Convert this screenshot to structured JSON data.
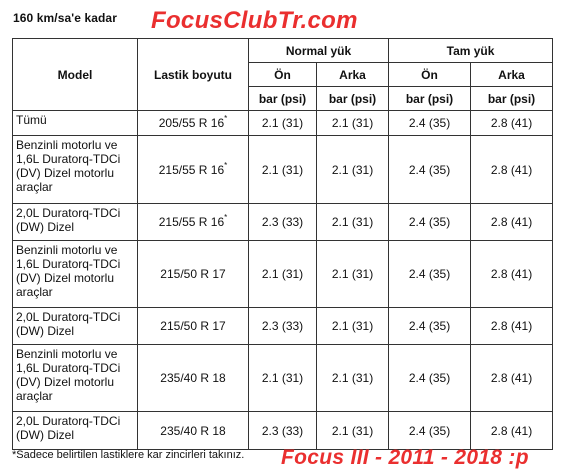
{
  "header": {
    "speed_label": "160 km/sa'e kadar",
    "brand": "FocusClubTr.com"
  },
  "table": {
    "col_model": "Model",
    "col_tire": "Lastik boyutu",
    "group_normal": "Normal yük",
    "group_full": "Tam yük",
    "front": "Ön",
    "rear": "Arka",
    "unit": "bar (psi)",
    "rows": [
      {
        "model": "Tümü",
        "tire": "205/55  R 16",
        "mark": "*",
        "nf": "2.1 (31)",
        "nr": "2.1 (31)",
        "ff": "2.4  (35)",
        "fr": "2.8  (41)"
      },
      {
        "model": "Benzinli motorlu ve 1,6L Duratorq-TDCi (DV) Dizel motorlu araçlar",
        "tire": "215/55  R 16",
        "mark": "*",
        "nf": "2.1 (31)",
        "nr": "2.1 (31)",
        "ff": "2.4  (35)",
        "fr": "2.8  (41)"
      },
      {
        "model": "2,0L Duratorq-TDCi (DW) Dizel",
        "tire": "215/55  R 16",
        "mark": "*",
        "nf": "2.3  (33)",
        "nr": "2.1 (31)",
        "ff": "2.4  (35)",
        "fr": "2.8  (41)"
      },
      {
        "model": "Benzinli motorlu ve 1,6L Duratorq-TDCi (DV) Dizel motorlu araçlar",
        "tire": "215/50  R 17",
        "mark": "",
        "nf": "2.1 (31)",
        "nr": "2.1 (31)",
        "ff": "2.4  (35)",
        "fr": "2.8  (41)"
      },
      {
        "model": "2,0L Duratorq-TDCi (DW) Dizel",
        "tire": "215/50  R 17",
        "mark": "",
        "nf": "2.3  (33)",
        "nr": "2.1 (31)",
        "ff": "2.4  (35)",
        "fr": "2.8  (41)"
      },
      {
        "model": "Benzinli motorlu ve 1,6L Duratorq-TDCi (DV) Dizel motorlu araçlar",
        "tire": "235/40  R 18",
        "mark": "",
        "nf": "2.1 (31)",
        "nr": "2.1 (31)",
        "ff": "2.4  (35)",
        "fr": "2.8  (41)"
      },
      {
        "model": "2,0L Duratorq-TDCi (DW) Dizel",
        "tire": "235/40  R 18",
        "mark": "",
        "nf": "2.3  (33)",
        "nr": "2.1 (31)",
        "ff": "2.4  (35)",
        "fr": "2.8  (41)"
      }
    ]
  },
  "footer": {
    "footnote": "*Sadece belirtilen lastiklere kar zincirleri takınız.",
    "car": "Focus III - 2011 - 2018 :p"
  },
  "colors": {
    "brand_red": "#ea2f2f",
    "border": "#333333"
  }
}
